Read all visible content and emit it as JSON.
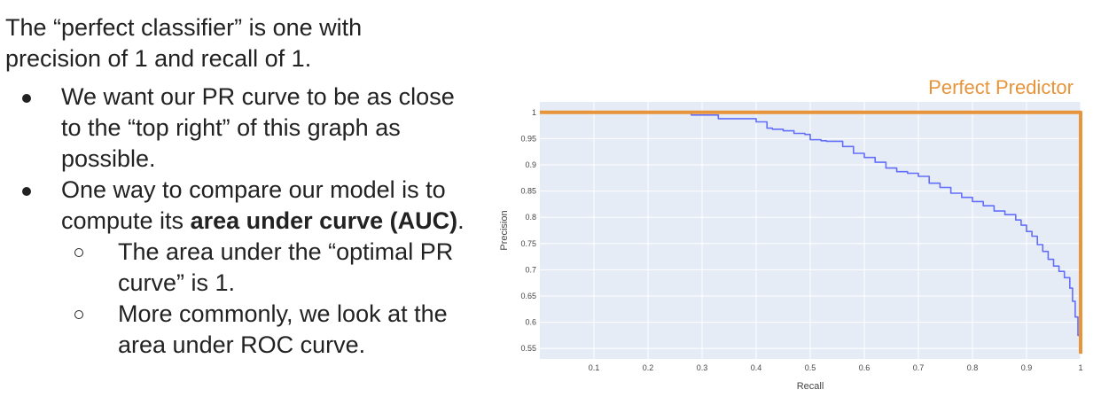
{
  "slide": {
    "intro_line1": "The “perfect classifier” is one with",
    "intro_line2": "precision of 1 and recall of 1.",
    "bullet1": "We want our PR curve to be as close to the “top right” of this graph as possible.",
    "bullet2_pre": "One way to compare our model is to compute its ",
    "bullet2_bold": "area under curve (AUC)",
    "bullet2_post": ".",
    "sub1": "The area under the “optimal PR curve” is 1.",
    "sub2": "More commonly, we look at the area under ROC curve."
  },
  "chart_data": {
    "type": "line",
    "title": "",
    "xlabel": "Recall",
    "ylabel": "Precision",
    "xlim": [
      0,
      1
    ],
    "ylim": [
      0.53,
      1.02
    ],
    "grid": true,
    "x_ticks": [
      0.1,
      0.2,
      0.3,
      0.4,
      0.5,
      0.6,
      0.7,
      0.8,
      0.9,
      1
    ],
    "x_tick_labels": [
      "0.1",
      "0.2",
      "0.3",
      "0.4",
      "0.5",
      "0.6",
      "0.7",
      "0.8",
      "0.9",
      "1"
    ],
    "y_ticks": [
      0.55,
      0.6,
      0.65,
      0.7,
      0.75,
      0.8,
      0.85,
      0.9,
      0.95,
      1
    ],
    "y_tick_labels": [
      "0.55",
      "0.6",
      "0.65",
      "0.7",
      "0.75",
      "0.8",
      "0.85",
      "0.9",
      "0.95",
      "1"
    ],
    "annotation": "Perfect Predictor",
    "colors": {
      "curve": "#636efa",
      "perfect": "#e8943a",
      "plot_bg": "#e5ecf6",
      "grid": "#ffffff",
      "annotation": "#e8943a"
    },
    "series": [
      {
        "x": [
          0,
          0.27,
          0.28,
          0.32,
          0.33,
          0.39,
          0.4,
          0.42,
          0.43,
          0.45,
          0.47,
          0.49,
          0.5,
          0.52,
          0.53,
          0.55,
          0.56,
          0.58,
          0.6,
          0.62,
          0.64,
          0.66,
          0.68,
          0.7,
          0.72,
          0.74,
          0.76,
          0.78,
          0.8,
          0.82,
          0.84,
          0.86,
          0.88,
          0.89,
          0.9,
          0.91,
          0.92,
          0.93,
          0.94,
          0.95,
          0.96,
          0.97,
          0.98,
          0.985,
          0.99,
          0.995,
          1.0
        ],
        "y": [
          1.0,
          1.0,
          0.995,
          0.995,
          0.988,
          0.988,
          0.982,
          0.97,
          0.968,
          0.965,
          0.96,
          0.958,
          0.948,
          0.946,
          0.945,
          0.945,
          0.935,
          0.922,
          0.914,
          0.905,
          0.894,
          0.887,
          0.884,
          0.878,
          0.865,
          0.857,
          0.846,
          0.838,
          0.83,
          0.822,
          0.812,
          0.805,
          0.795,
          0.785,
          0.773,
          0.764,
          0.748,
          0.735,
          0.72,
          0.707,
          0.697,
          0.685,
          0.665,
          0.64,
          0.61,
          0.575,
          0.56
        ]
      },
      {
        "x": [
          0,
          1,
          1
        ],
        "y": [
          1,
          1,
          0.54
        ]
      }
    ]
  }
}
